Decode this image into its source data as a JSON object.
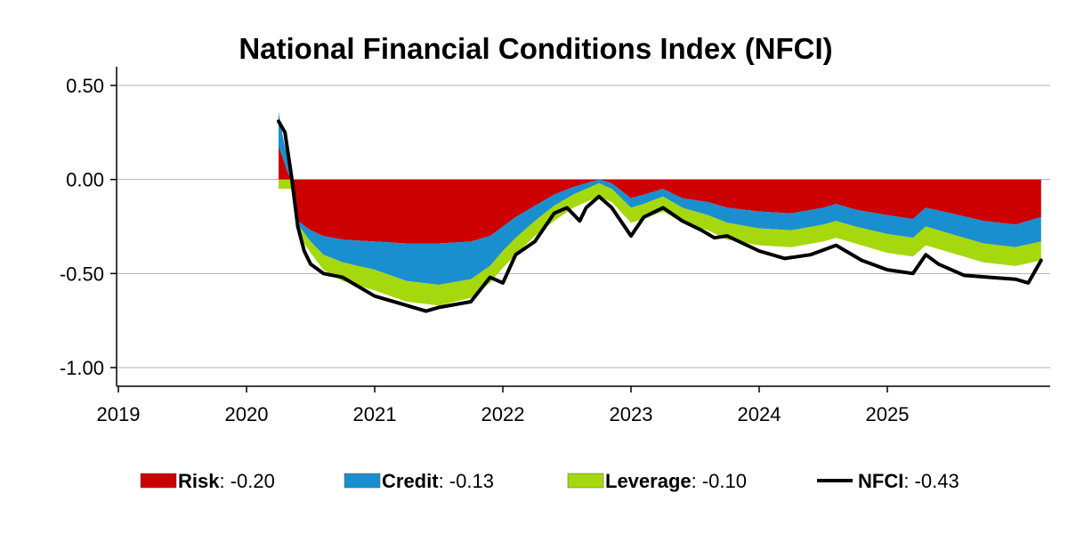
{
  "chart_data": {
    "type": "area",
    "title": "National Financial Conditions Index (NFCI)",
    "xlabel": "",
    "ylabel": "",
    "x_ticks": [
      "2019",
      "2020",
      "2021",
      "2022",
      "2023",
      "2024",
      "2025"
    ],
    "y_ticks": [
      0.5,
      0.0,
      -0.5,
      -1.0
    ],
    "y_tick_labels": [
      "0.50",
      "0.00",
      "-0.50",
      "-1.00"
    ],
    "xlim": [
      2019.0,
      2026.27
    ],
    "ylim": [
      -1.1,
      0.6
    ],
    "grid": "horizontal",
    "legend_position": "bottom",
    "series": [
      {
        "name": "Risk",
        "kind": "stacked-area",
        "color": "#cc0000",
        "x": [
          2020.25,
          2020.28,
          2020.32,
          2020.35,
          2020.4,
          2020.5,
          2020.6,
          2020.75,
          2021.0,
          2021.25,
          2021.5,
          2021.75,
          2021.9,
          2022.0,
          2022.1,
          2022.25,
          2022.4,
          2022.55,
          2022.65,
          2022.75,
          2022.85,
          2023.0,
          2023.1,
          2023.25,
          2023.4,
          2023.6,
          2023.75,
          2024.0,
          2024.25,
          2024.5,
          2024.6,
          2024.75,
          2025.0,
          2025.2,
          2025.3,
          2025.5,
          2025.75,
          2026.0,
          2026.2
        ],
        "values": [
          0.18,
          0.12,
          0.04,
          0.0,
          -0.22,
          -0.27,
          -0.3,
          -0.32,
          -0.33,
          -0.34,
          -0.34,
          -0.33,
          -0.3,
          -0.25,
          -0.2,
          -0.14,
          -0.08,
          -0.04,
          -0.02,
          0.0,
          -0.02,
          -0.1,
          -0.08,
          -0.05,
          -0.1,
          -0.12,
          -0.15,
          -0.17,
          -0.18,
          -0.15,
          -0.13,
          -0.16,
          -0.19,
          -0.21,
          -0.15,
          -0.18,
          -0.22,
          -0.24,
          -0.2
        ]
      },
      {
        "name": "Credit",
        "kind": "stacked-area",
        "color": "#1a8fd0",
        "x": [
          2020.25,
          2020.28,
          2020.32,
          2020.35,
          2020.4,
          2020.5,
          2020.6,
          2020.75,
          2021.0,
          2021.25,
          2021.5,
          2021.75,
          2021.9,
          2022.0,
          2022.1,
          2022.25,
          2022.4,
          2022.55,
          2022.65,
          2022.75,
          2022.85,
          2023.0,
          2023.1,
          2023.25,
          2023.4,
          2023.6,
          2023.75,
          2024.0,
          2024.25,
          2024.5,
          2024.6,
          2024.75,
          2025.0,
          2025.2,
          2025.3,
          2025.5,
          2025.75,
          2026.0,
          2026.2
        ],
        "values": [
          0.18,
          0.12,
          0.07,
          0.02,
          -0.02,
          -0.06,
          -0.1,
          -0.12,
          -0.15,
          -0.2,
          -0.22,
          -0.2,
          -0.16,
          -0.13,
          -0.11,
          -0.08,
          -0.06,
          -0.04,
          -0.03,
          -0.02,
          -0.03,
          -0.05,
          -0.05,
          -0.04,
          -0.05,
          -0.07,
          -0.08,
          -0.09,
          -0.09,
          -0.09,
          -0.09,
          -0.09,
          -0.1,
          -0.1,
          -0.1,
          -0.11,
          -0.12,
          -0.12,
          -0.13
        ]
      },
      {
        "name": "Leverage",
        "kind": "stacked-area",
        "color": "#a6d80e",
        "x": [
          2020.25,
          2020.28,
          2020.32,
          2020.35,
          2020.4,
          2020.5,
          2020.6,
          2020.75,
          2021.0,
          2021.25,
          2021.5,
          2021.75,
          2021.9,
          2022.0,
          2022.1,
          2022.25,
          2022.4,
          2022.55,
          2022.65,
          2022.75,
          2022.85,
          2023.0,
          2023.1,
          2023.25,
          2023.4,
          2023.6,
          2023.75,
          2024.0,
          2024.25,
          2024.5,
          2024.6,
          2024.75,
          2025.0,
          2025.2,
          2025.3,
          2025.5,
          2025.75,
          2026.0,
          2026.2
        ],
        "values": [
          -0.05,
          -0.05,
          -0.05,
          -0.05,
          -0.05,
          -0.06,
          -0.08,
          -0.1,
          -0.11,
          -0.11,
          -0.11,
          -0.1,
          -0.09,
          -0.09,
          -0.09,
          -0.08,
          -0.08,
          -0.07,
          -0.07,
          -0.07,
          -0.07,
          -0.08,
          -0.08,
          -0.08,
          -0.08,
          -0.08,
          -0.09,
          -0.09,
          -0.09,
          -0.09,
          -0.09,
          -0.09,
          -0.1,
          -0.1,
          -0.1,
          -0.1,
          -0.1,
          -0.1,
          -0.1
        ]
      },
      {
        "name": "NFCI",
        "kind": "line",
        "color": "#000000",
        "x": [
          2020.25,
          2020.3,
          2020.35,
          2020.4,
          2020.45,
          2020.5,
          2020.6,
          2020.75,
          2021.0,
          2021.2,
          2021.4,
          2021.5,
          2021.75,
          2021.9,
          2022.0,
          2022.1,
          2022.25,
          2022.4,
          2022.5,
          2022.6,
          2022.65,
          2022.75,
          2022.85,
          2023.0,
          2023.1,
          2023.25,
          2023.4,
          2023.55,
          2023.65,
          2023.75,
          2024.0,
          2024.2,
          2024.4,
          2024.6,
          2024.8,
          2025.0,
          2025.2,
          2025.3,
          2025.4,
          2025.6,
          2025.8,
          2026.0,
          2026.1,
          2026.2
        ],
        "values": [
          0.31,
          0.25,
          0.02,
          -0.25,
          -0.38,
          -0.45,
          -0.5,
          -0.52,
          -0.62,
          -0.66,
          -0.7,
          -0.68,
          -0.65,
          -0.52,
          -0.55,
          -0.4,
          -0.33,
          -0.18,
          -0.15,
          -0.22,
          -0.15,
          -0.09,
          -0.15,
          -0.3,
          -0.2,
          -0.15,
          -0.22,
          -0.27,
          -0.31,
          -0.3,
          -0.38,
          -0.42,
          -0.4,
          -0.35,
          -0.43,
          -0.48,
          -0.5,
          -0.4,
          -0.45,
          -0.51,
          -0.52,
          -0.53,
          -0.55,
          -0.43
        ]
      }
    ],
    "legend": [
      {
        "name": "Risk",
        "value_text": ": -0.20",
        "color": "#cc0000",
        "kind": "box"
      },
      {
        "name": "Credit",
        "value_text": ": -0.13",
        "color": "#1a8fd0",
        "kind": "box"
      },
      {
        "name": "Leverage",
        "value_text": ": -0.10",
        "color": "#a6d80e",
        "kind": "box"
      },
      {
        "name": "NFCI",
        "value_text": ": -0.43",
        "color": "#000000",
        "kind": "line"
      }
    ]
  }
}
